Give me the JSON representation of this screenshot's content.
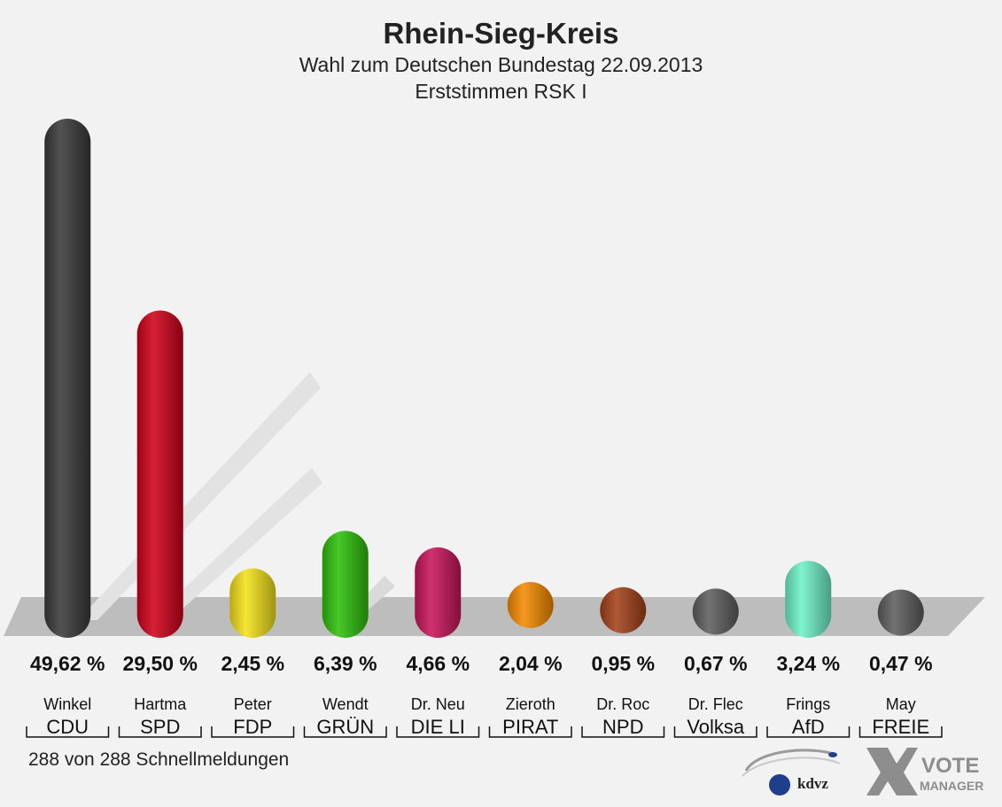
{
  "header": {
    "title": "Rhein-Sieg-Kreis",
    "subtitle": "Wahl zum Deutschen Bundestag 22.09.2013",
    "subtitle2": "Erststimmen RSK I"
  },
  "footer": {
    "status": "288 von 288 Schnellmeldungen",
    "logo_kdvz": "kdvz",
    "logo_vote": "VOTE",
    "logo_manager": "MANAGER"
  },
  "chart_data": {
    "type": "bar",
    "title": "Rhein-Sieg-Kreis",
    "subtitle": "Wahl zum Deutschen Bundestag 22.09.2013 – Erststimmen RSK I",
    "categories": [
      "CDU",
      "SPD",
      "FDP",
      "GRÜN",
      "DIE LI",
      "PIRAT",
      "NPD",
      "Volksa",
      "AfD",
      "FREIE"
    ],
    "candidates": [
      "Winkel",
      "Hartma",
      "Peter",
      "Wendt",
      "Dr. Neu",
      "Zieroth",
      "Dr. Roc",
      "Dr. Flec",
      "Frings",
      "May"
    ],
    "values": [
      49.62,
      29.5,
      2.45,
      6.39,
      4.66,
      2.04,
      0.95,
      0.67,
      3.24,
      0.47
    ],
    "value_labels": [
      "49,62 %",
      "29,50 %",
      "2,45 %",
      "6,39 %",
      "4,66 %",
      "2,04 %",
      "0,95 %",
      "0,67 %",
      "3,24 %",
      "0,47 %"
    ],
    "colors": [
      "#3a3a3a",
      "#d0021b",
      "#f5e21a",
      "#2fc10c",
      "#c8165a",
      "#f58a00",
      "#a4421a",
      "#5f5f5f",
      "#6ff2c8",
      "#5f5f5f"
    ],
    "ylim": [
      0,
      49.62
    ],
    "xlabel": "",
    "ylabel": "",
    "grid": false,
    "legend": "none"
  }
}
